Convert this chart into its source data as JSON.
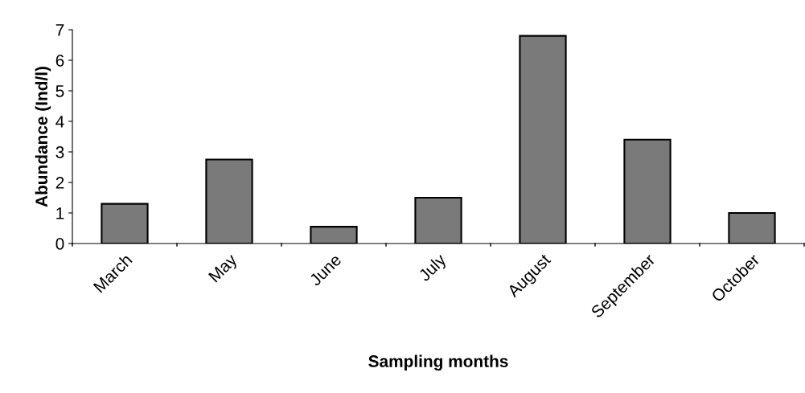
{
  "chart_data": {
    "type": "bar",
    "xlabel": "Sampling months",
    "ylabel": "Abundance (Ind/l)",
    "categories": [
      "March",
      "May",
      "June",
      "July",
      "August",
      "September",
      "October"
    ],
    "values": [
      1.3,
      2.75,
      0.55,
      1.5,
      6.8,
      3.4,
      1.0
    ],
    "color": "#7a7a7a",
    "ylim": [
      0,
      7
    ],
    "yticks": [
      0,
      1,
      2,
      3,
      4,
      5,
      6,
      7
    ],
    "grid": false,
    "legend": false
  }
}
